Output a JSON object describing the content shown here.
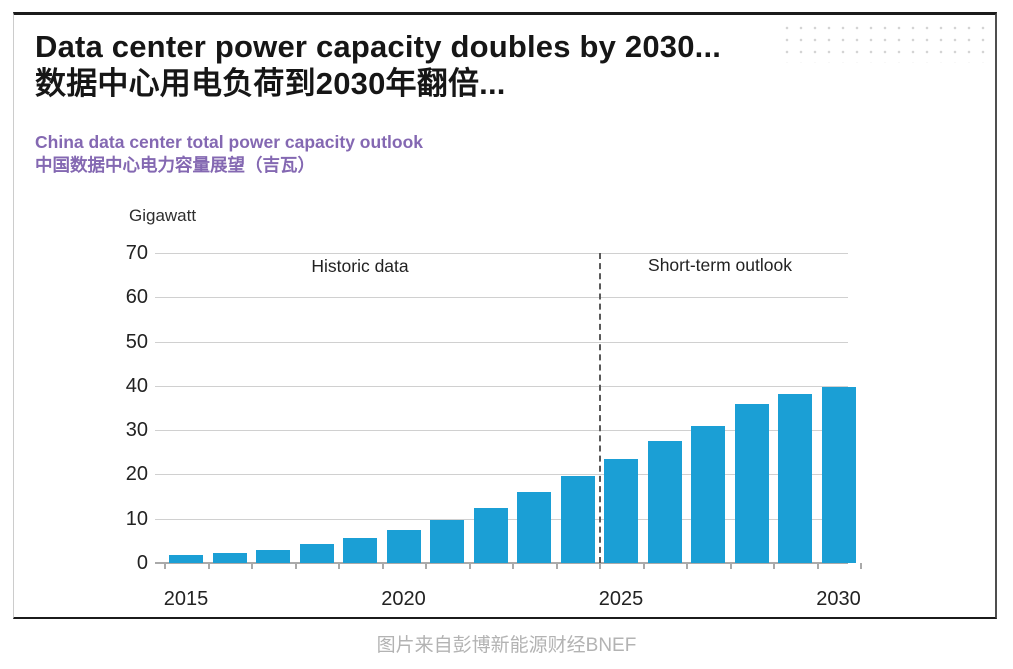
{
  "header": {
    "title_en": "Data center power capacity doubles by 2030...",
    "title_cn": "数据中心用电负荷到2030年翻倍..."
  },
  "subtitle": {
    "en": "China data center total power capacity outlook",
    "cn": "中国数据中心电力容量展望（吉瓦）",
    "color": "#8468b2"
  },
  "chart_data": {
    "type": "bar",
    "title": "China data center total power capacity outlook",
    "unit_label": "Gigawatt",
    "categories": [
      "2015",
      "2016",
      "2017",
      "2018",
      "2019",
      "2020",
      "2021",
      "2022",
      "2023",
      "2024",
      "2025",
      "2026",
      "2027",
      "2028",
      "2029",
      "2030"
    ],
    "values": [
      1.8,
      2.3,
      3.0,
      4.2,
      5.7,
      7.4,
      9.6,
      12.4,
      16.0,
      19.7,
      23.5,
      27.5,
      31.0,
      35.8,
      38.2,
      39.8
    ],
    "ylim": [
      0,
      70
    ],
    "yticks": [
      0,
      10,
      20,
      30,
      40,
      50,
      60,
      70
    ],
    "xtick_labels": [
      "2015",
      "2020",
      "2025",
      "2030"
    ],
    "grid": true,
    "legend": "none",
    "bar_color": "#1b9fd5",
    "divider_between": [
      "2024",
      "2025"
    ],
    "region_labels": {
      "historic": "Historic data",
      "outlook": "Short-term outlook"
    }
  },
  "footer": {
    "caption": "图片来自彭博新能源财经BNEF"
  }
}
